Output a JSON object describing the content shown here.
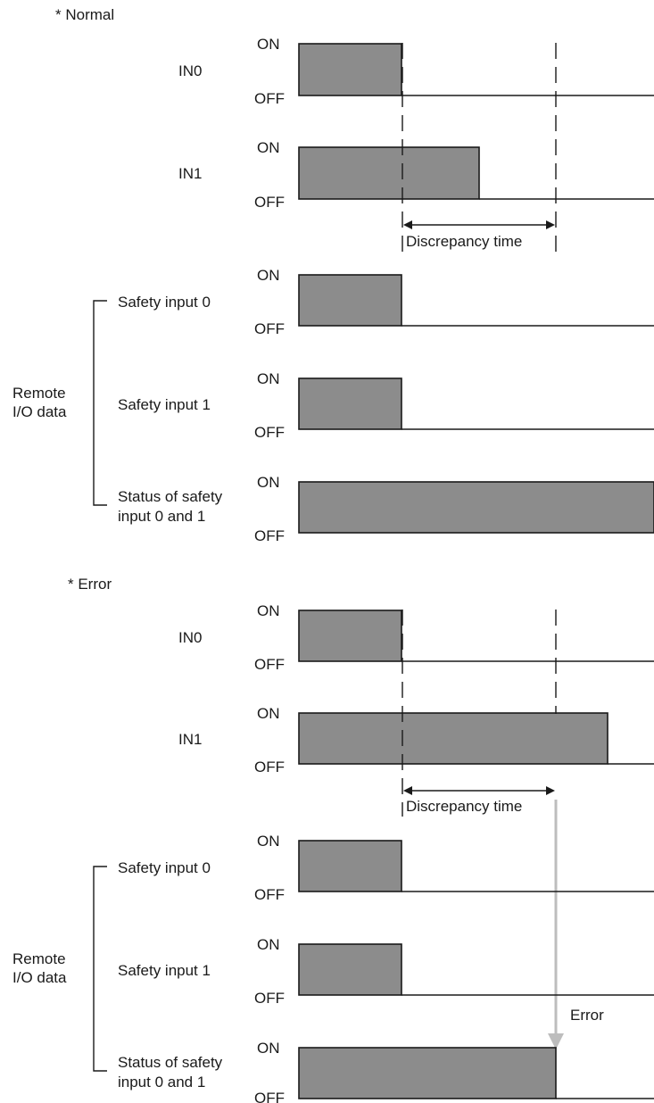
{
  "normal": {
    "heading": "* Normal",
    "signals": {
      "in0": "IN0",
      "in1": "IN1",
      "safety0": "Safety input 0",
      "safety1": "Safety input 1",
      "status_line1": "Status of safety",
      "status_line2": "input 0 and 1"
    },
    "group_label_line1": "Remote",
    "group_label_line2": "I/O data",
    "discrepancy": "Discrepancy time"
  },
  "error": {
    "heading": "* Error",
    "signals": {
      "in0": "IN0",
      "in1": "IN1",
      "safety0": "Safety input 0",
      "safety1": "Safety input 1",
      "status_line1": "Status of safety",
      "status_line2": "input 0 and 1"
    },
    "group_label_line1": "Remote",
    "group_label_line2": "I/O data",
    "discrepancy": "Discrepancy time",
    "error_label": "Error"
  },
  "levels": {
    "on": "ON",
    "off": "OFF"
  }
}
